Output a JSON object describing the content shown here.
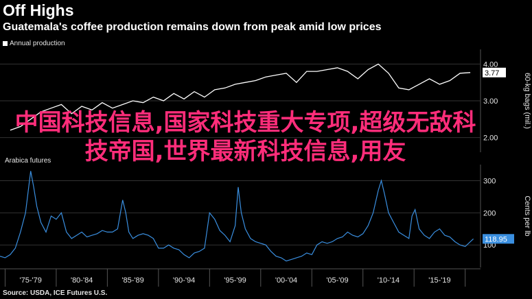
{
  "header": {
    "title": "Off Highs",
    "subtitle": "Guatemala's coffee production remains down from peak amid low prices"
  },
  "watermark": "中国科技信息,国家科技重大专项,超级无敌科技帝国,世界最新科技信息,用友",
  "source": "Source: USDA, ICE Futures U.S.",
  "colors": {
    "production": "#ffffff",
    "futures": "#3a8fe0",
    "grid": "#333333",
    "background": "#000000"
  },
  "chart_data": [
    {
      "type": "line",
      "legend": "Annual production",
      "ylabel": "60-kg bags (mil.)",
      "ylim": [
        1.6,
        4.4
      ],
      "yticks": [
        {
          "v": 2.0,
          "label": "2.00"
        },
        {
          "v": 3.0,
          "label": "3.00"
        },
        {
          "v": 4.0,
          "label": "4.00"
        }
      ],
      "last_value_label": "3.77",
      "x": [
        1975,
        1976,
        1977,
        1978,
        1979,
        1980,
        1981,
        1982,
        1983,
        1984,
        1985,
        1986,
        1987,
        1988,
        1989,
        1990,
        1991,
        1992,
        1993,
        1994,
        1995,
        1996,
        1997,
        1998,
        1999,
        2000,
        2001,
        2002,
        2003,
        2004,
        2005,
        2006,
        2007,
        2008,
        2009,
        2010,
        2011,
        2012,
        2013,
        2014,
        2015,
        2016,
        2017,
        2018,
        2019,
        2020
      ],
      "y": [
        2.2,
        2.3,
        2.5,
        2.7,
        2.8,
        2.9,
        2.65,
        2.85,
        2.75,
        2.95,
        2.8,
        2.9,
        3.0,
        2.95,
        3.1,
        3.0,
        3.2,
        3.05,
        3.25,
        3.1,
        3.3,
        3.35,
        3.45,
        3.5,
        3.55,
        3.65,
        3.7,
        3.75,
        3.5,
        3.8,
        3.8,
        3.85,
        3.9,
        3.8,
        3.6,
        3.85,
        4.0,
        3.75,
        3.35,
        3.3,
        3.45,
        3.6,
        3.45,
        3.55,
        3.75,
        3.77
      ]
    },
    {
      "type": "line",
      "legend": "Arabica futures",
      "ylabel": "Cents per lb",
      "ylim": [
        30,
        350
      ],
      "yticks": [
        {
          "v": 100,
          "label": "100"
        },
        {
          "v": 200,
          "label": "200"
        },
        {
          "v": 300,
          "label": "300"
        }
      ],
      "last_value_label": "118.95",
      "x": [
        1974.0,
        1974.5,
        1975.0,
        1975.5,
        1976.0,
        1976.5,
        1977.0,
        1977.3,
        1977.6,
        1978.0,
        1978.5,
        1979.0,
        1979.5,
        1980.0,
        1980.5,
        1981.0,
        1981.5,
        1982.0,
        1982.5,
        1983.0,
        1983.5,
        1984.0,
        1984.5,
        1985.0,
        1985.5,
        1986.0,
        1986.3,
        1986.6,
        1987.0,
        1987.5,
        1988.0,
        1988.5,
        1989.0,
        1989.5,
        1990.0,
        1990.5,
        1991.0,
        1991.5,
        1992.0,
        1992.5,
        1993.0,
        1993.5,
        1994.0,
        1994.5,
        1995.0,
        1995.5,
        1996.0,
        1996.5,
        1997.0,
        1997.3,
        1997.6,
        1998.0,
        1998.5,
        1999.0,
        1999.5,
        2000.0,
        2000.5,
        2001.0,
        2001.5,
        2002.0,
        2002.5,
        2003.0,
        2003.5,
        2004.0,
        2004.5,
        2005.0,
        2005.5,
        2006.0,
        2006.5,
        2007.0,
        2007.5,
        2008.0,
        2008.5,
        2009.0,
        2009.5,
        2010.0,
        2010.5,
        2011.0,
        2011.3,
        2011.6,
        2012.0,
        2012.5,
        2013.0,
        2013.5,
        2014.0,
        2014.3,
        2014.6,
        2015.0,
        2015.5,
        2016.0,
        2016.5,
        2017.0,
        2017.5,
        2018.0,
        2018.5,
        2019.0,
        2019.5,
        2020.0,
        2020.3
      ],
      "y": [
        65,
        60,
        70,
        90,
        140,
        200,
        330,
        280,
        220,
        170,
        140,
        190,
        180,
        200,
        140,
        120,
        130,
        140,
        125,
        130,
        135,
        145,
        140,
        140,
        150,
        240,
        200,
        140,
        120,
        130,
        135,
        130,
        120,
        90,
        90,
        100,
        90,
        85,
        70,
        60,
        75,
        80,
        90,
        200,
        180,
        145,
        130,
        110,
        160,
        280,
        200,
        150,
        120,
        110,
        105,
        100,
        80,
        65,
        60,
        50,
        55,
        60,
        65,
        75,
        70,
        100,
        110,
        105,
        110,
        120,
        125,
        140,
        130,
        125,
        135,
        160,
        200,
        270,
        300,
        260,
        200,
        170,
        140,
        130,
        120,
        190,
        210,
        150,
        130,
        120,
        140,
        150,
        130,
        125,
        110,
        100,
        95,
        110,
        118.95
      ]
    }
  ],
  "x_axis": {
    "range": [
      1974,
      2021
    ],
    "ticks": [
      {
        "v": 1977,
        "label": "'75-'79"
      },
      {
        "v": 1982,
        "label": "'80-'84"
      },
      {
        "v": 1987,
        "label": "'85-'89"
      },
      {
        "v": 1992,
        "label": "'90-'94"
      },
      {
        "v": 1997,
        "label": "'95-'99"
      },
      {
        "v": 2002,
        "label": "'00-'04"
      },
      {
        "v": 2007,
        "label": "'05-'09"
      },
      {
        "v": 2012,
        "label": "'10-'14"
      },
      {
        "v": 2017,
        "label": "'15-'19"
      }
    ],
    "dividers": [
      1974.5,
      1979.5,
      1984.5,
      1989.5,
      1994.5,
      1999.5,
      2004.5,
      2009.5,
      2014.5,
      2019.5
    ]
  }
}
